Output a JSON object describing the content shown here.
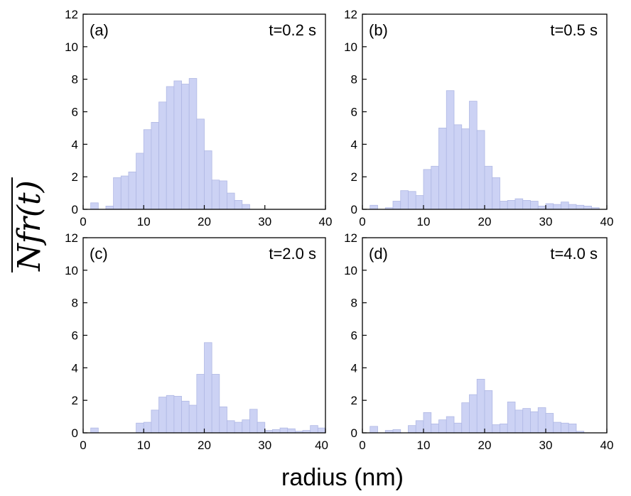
{
  "chart_data": {
    "type": "bar",
    "ylabel": "Nfr(t)",
    "xlabel": "radius (nm)",
    "bar_color": "#ccd2f4",
    "bar_edge": "#b0b8e4",
    "bin_width": 1.25,
    "xlim": [
      0,
      40
    ],
    "ylim": [
      0,
      12
    ],
    "xticks": [
      0,
      10,
      20,
      30,
      40
    ],
    "yticks": [
      0,
      2,
      4,
      6,
      8,
      10,
      12
    ],
    "xtick_labels": [
      "0",
      "10",
      "20",
      "30",
      "40"
    ],
    "ytick_labels": [
      "0",
      "2",
      "4",
      "6",
      "8",
      "10",
      "12"
    ],
    "panels": [
      {
        "panel_label": "(a)",
        "time_label": "t=0.2 s",
        "bins": [
          {
            "x": 1.25,
            "y": 0.4
          },
          {
            "x": 3.75,
            "y": 0.2
          },
          {
            "x": 5.0,
            "y": 1.95
          },
          {
            "x": 6.25,
            "y": 2.05
          },
          {
            "x": 7.5,
            "y": 2.3
          },
          {
            "x": 8.75,
            "y": 3.45
          },
          {
            "x": 10.0,
            "y": 4.9
          },
          {
            "x": 11.25,
            "y": 5.35
          },
          {
            "x": 12.5,
            "y": 6.6
          },
          {
            "x": 13.75,
            "y": 7.55
          },
          {
            "x": 15.0,
            "y": 7.9
          },
          {
            "x": 16.25,
            "y": 7.7
          },
          {
            "x": 17.5,
            "y": 8.05
          },
          {
            "x": 18.75,
            "y": 5.55
          },
          {
            "x": 20.0,
            "y": 3.6
          },
          {
            "x": 21.25,
            "y": 1.8
          },
          {
            "x": 22.5,
            "y": 1.75
          },
          {
            "x": 23.75,
            "y": 1.0
          },
          {
            "x": 25.0,
            "y": 0.55
          },
          {
            "x": 26.25,
            "y": 0.3
          }
        ]
      },
      {
        "panel_label": "(b)",
        "time_label": "t=0.5 s",
        "bins": [
          {
            "x": 1.25,
            "y": 0.25
          },
          {
            "x": 3.75,
            "y": 0.1
          },
          {
            "x": 5.0,
            "y": 0.5
          },
          {
            "x": 6.25,
            "y": 1.15
          },
          {
            "x": 7.5,
            "y": 1.1
          },
          {
            "x": 8.75,
            "y": 0.85
          },
          {
            "x": 10.0,
            "y": 2.45
          },
          {
            "x": 11.25,
            "y": 2.65
          },
          {
            "x": 12.5,
            "y": 5.0
          },
          {
            "x": 13.75,
            "y": 7.3
          },
          {
            "x": 15.0,
            "y": 5.2
          },
          {
            "x": 16.25,
            "y": 4.95
          },
          {
            "x": 17.5,
            "y": 6.65
          },
          {
            "x": 18.75,
            "y": 4.85
          },
          {
            "x": 20.0,
            "y": 2.65
          },
          {
            "x": 21.25,
            "y": 1.95
          },
          {
            "x": 22.5,
            "y": 0.5
          },
          {
            "x": 23.75,
            "y": 0.55
          },
          {
            "x": 25.0,
            "y": 0.65
          },
          {
            "x": 26.25,
            "y": 0.55
          },
          {
            "x": 27.5,
            "y": 0.5
          },
          {
            "x": 28.75,
            "y": 0.2
          },
          {
            "x": 30.0,
            "y": 0.35
          },
          {
            "x": 31.25,
            "y": 0.3
          },
          {
            "x": 32.5,
            "y": 0.45
          },
          {
            "x": 33.75,
            "y": 0.3
          },
          {
            "x": 35.0,
            "y": 0.25
          },
          {
            "x": 36.25,
            "y": 0.2
          },
          {
            "x": 37.5,
            "y": 0.1
          }
        ]
      },
      {
        "panel_label": "(c)",
        "time_label": "t=2.0 s",
        "bins": [
          {
            "x": 1.25,
            "y": 0.3
          },
          {
            "x": 8.75,
            "y": 0.6
          },
          {
            "x": 10.0,
            "y": 0.65
          },
          {
            "x": 11.25,
            "y": 1.4
          },
          {
            "x": 12.5,
            "y": 2.2
          },
          {
            "x": 13.75,
            "y": 2.3
          },
          {
            "x": 15.0,
            "y": 2.25
          },
          {
            "x": 16.25,
            "y": 1.95
          },
          {
            "x": 17.5,
            "y": 1.7
          },
          {
            "x": 18.75,
            "y": 3.6
          },
          {
            "x": 20.0,
            "y": 5.55
          },
          {
            "x": 21.25,
            "y": 3.6
          },
          {
            "x": 22.5,
            "y": 1.6
          },
          {
            "x": 23.75,
            "y": 0.75
          },
          {
            "x": 25.0,
            "y": 0.65
          },
          {
            "x": 26.25,
            "y": 0.8
          },
          {
            "x": 27.5,
            "y": 1.45
          },
          {
            "x": 28.75,
            "y": 0.65
          },
          {
            "x": 30.0,
            "y": 0.15
          },
          {
            "x": 31.25,
            "y": 0.2
          },
          {
            "x": 32.5,
            "y": 0.3
          },
          {
            "x": 33.75,
            "y": 0.25
          },
          {
            "x": 35.0,
            "y": 0.1
          },
          {
            "x": 36.25,
            "y": 0.15
          },
          {
            "x": 37.5,
            "y": 0.45
          },
          {
            "x": 38.75,
            "y": 0.3
          }
        ]
      },
      {
        "panel_label": "(d)",
        "time_label": "t=4.0 s",
        "bins": [
          {
            "x": 1.25,
            "y": 0.4
          },
          {
            "x": 3.75,
            "y": 0.15
          },
          {
            "x": 5.0,
            "y": 0.2
          },
          {
            "x": 7.5,
            "y": 0.45
          },
          {
            "x": 8.75,
            "y": 0.75
          },
          {
            "x": 10.0,
            "y": 1.25
          },
          {
            "x": 11.25,
            "y": 0.55
          },
          {
            "x": 12.5,
            "y": 0.8
          },
          {
            "x": 13.75,
            "y": 1.0
          },
          {
            "x": 15.0,
            "y": 0.6
          },
          {
            "x": 16.25,
            "y": 1.85
          },
          {
            "x": 17.5,
            "y": 2.35
          },
          {
            "x": 18.75,
            "y": 3.3
          },
          {
            "x": 20.0,
            "y": 2.6
          },
          {
            "x": 21.25,
            "y": 0.5
          },
          {
            "x": 22.5,
            "y": 0.55
          },
          {
            "x": 23.75,
            "y": 1.9
          },
          {
            "x": 25.0,
            "y": 1.4
          },
          {
            "x": 26.25,
            "y": 1.5
          },
          {
            "x": 27.5,
            "y": 1.3
          },
          {
            "x": 28.75,
            "y": 1.55
          },
          {
            "x": 30.0,
            "y": 1.2
          },
          {
            "x": 31.25,
            "y": 0.65
          },
          {
            "x": 32.5,
            "y": 0.6
          },
          {
            "x": 33.75,
            "y": 0.55
          },
          {
            "x": 35.0,
            "y": 0.1
          }
        ]
      }
    ]
  }
}
